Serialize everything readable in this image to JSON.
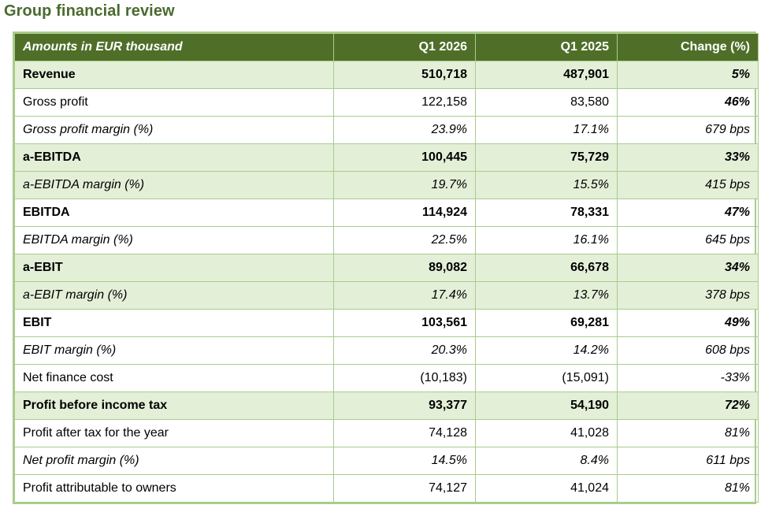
{
  "title": "Group financial review",
  "colors": {
    "title": "#4a6b2e",
    "header_bg": "#4f6f29",
    "shade": "#e3efd7",
    "border": "#a9cc8c"
  },
  "table": {
    "headers": [
      "Amounts in EUR thousand",
      "Q1 2026",
      "Q1 2025",
      "Change (%)"
    ],
    "rows": [
      {
        "label": "Revenue",
        "q1_2026": "510,718",
        "q1_2025": "487,901",
        "change": "5%",
        "style": "bold",
        "shaded": true,
        "change_style": "bold-italic"
      },
      {
        "label": "Gross profit",
        "q1_2026": "122,158",
        "q1_2025": "83,580",
        "change": "46%",
        "style": "normal",
        "shaded": false,
        "change_style": "bold-italic"
      },
      {
        "label": "Gross profit margin (%)",
        "q1_2026": "23.9%",
        "q1_2025": "17.1%",
        "change": "679 bps",
        "style": "italic",
        "shaded": false,
        "change_style": "italic"
      },
      {
        "label": "a-EBITDA",
        "q1_2026": "100,445",
        "q1_2025": "75,729",
        "change": "33%",
        "style": "bold",
        "shaded": true,
        "change_style": "bold-italic"
      },
      {
        "label": "a-EBITDA margin (%)",
        "q1_2026": "19.7%",
        "q1_2025": "15.5%",
        "change": "415 bps",
        "style": "italic",
        "shaded": true,
        "change_style": "italic"
      },
      {
        "label": "EBITDA",
        "q1_2026": "114,924",
        "q1_2025": "78,331",
        "change": "47%",
        "style": "bold",
        "shaded": false,
        "change_style": "bold-italic"
      },
      {
        "label": "EBITDA margin (%)",
        "q1_2026": "22.5%",
        "q1_2025": "16.1%",
        "change": "645 bps",
        "style": "italic",
        "shaded": false,
        "change_style": "italic"
      },
      {
        "label": "a-EBIT",
        "q1_2026": "89,082",
        "q1_2025": "66,678",
        "change": "34%",
        "style": "bold",
        "shaded": true,
        "change_style": "bold-italic"
      },
      {
        "label": "a-EBIT margin (%)",
        "q1_2026": "17.4%",
        "q1_2025": "13.7%",
        "change": "378 bps",
        "style": "italic",
        "shaded": true,
        "change_style": "italic"
      },
      {
        "label": "EBIT",
        "q1_2026": "103,561",
        "q1_2025": "69,281",
        "change": "49%",
        "style": "bold",
        "shaded": false,
        "change_style": "bold-italic"
      },
      {
        "label": "EBIT margin (%)",
        "q1_2026": "20.3%",
        "q1_2025": "14.2%",
        "change": "608 bps",
        "style": "italic",
        "shaded": false,
        "change_style": "italic"
      },
      {
        "label": "Net finance cost",
        "q1_2026": "(10,183)",
        "q1_2025": "(15,091)",
        "change": "-33%",
        "style": "normal",
        "shaded": false,
        "change_style": "italic"
      },
      {
        "label": "Profit before income tax",
        "q1_2026": "93,377",
        "q1_2025": "54,190",
        "change": "72%",
        "style": "bold",
        "shaded": true,
        "change_style": "bold-italic"
      },
      {
        "label": "Profit after tax for the year",
        "q1_2026": "74,128",
        "q1_2025": "41,028",
        "change": "81%",
        "style": "normal",
        "shaded": false,
        "change_style": "italic"
      },
      {
        "label": "Net profit margin (%)",
        "q1_2026": "14.5%",
        "q1_2025": "8.4%",
        "change": "611 bps",
        "style": "italic",
        "shaded": false,
        "change_style": "italic"
      },
      {
        "label": "Profit attributable to owners",
        "q1_2026": "74,127",
        "q1_2025": "41,024",
        "change": "81%",
        "style": "normal",
        "shaded": false,
        "change_style": "italic"
      }
    ]
  }
}
